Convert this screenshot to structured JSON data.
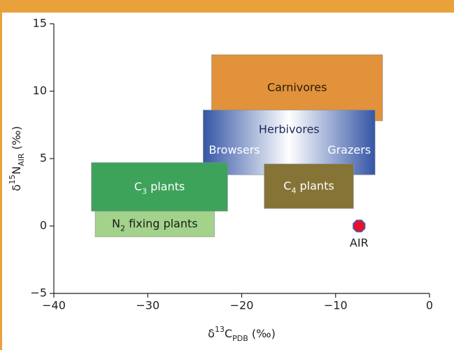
{
  "chart_data": {
    "type": "range-box",
    "x_label": [
      {
        "text": "δ"
      },
      {
        "text": "13",
        "sup": true
      },
      {
        "text": "C"
      },
      {
        "text": "PDB",
        "sub": true
      },
      {
        "text": " (‰)"
      }
    ],
    "y_label": [
      {
        "text": "δ"
      },
      {
        "text": "15",
        "sup": true
      },
      {
        "text": "N"
      },
      {
        "text": "AIR",
        "sub": true
      },
      {
        "text": " (‰)"
      }
    ],
    "xlim": [
      -40,
      0
    ],
    "ylim": [
      -5,
      15
    ],
    "xticks": [
      {
        "value": -40,
        "label": "−40"
      },
      {
        "value": -30,
        "label": "−30"
      },
      {
        "value": -20,
        "label": "−20"
      },
      {
        "value": -10,
        "label": "−10"
      },
      0
    ],
    "yticks": [
      {
        "value": -5,
        "label": "−5"
      },
      0,
      5,
      10,
      15
    ],
    "grid": false,
    "boxes": [
      {
        "label": [
          {
            "text": "Carnivores"
          }
        ],
        "x": [
          -23.2,
          -5
        ],
        "y": [
          7.8,
          12.7
        ],
        "color": "#e1923a",
        "text_color": "#2a1a08"
      },
      {
        "label": [
          {
            "text": "Herbivores"
          }
        ],
        "x": [
          -24.1,
          -5.8
        ],
        "y": [
          3.8,
          8.6
        ],
        "color": [
          "#3556a6",
          "#ffffff",
          "#3556a6"
        ],
        "text_color": "#1c2a5c",
        "sublabels": [
          {
            "text": "Browsers",
            "side": "left"
          },
          {
            "text": "Grazers",
            "side": "right"
          }
        ]
      },
      {
        "label": [
          {
            "text": "C"
          },
          {
            "text": "3",
            "sub": true
          },
          {
            "text": " plants"
          }
        ],
        "x": [
          -36,
          -21.5
        ],
        "y": [
          1.1,
          4.7
        ],
        "color": "#3da35a",
        "text_color": "#ffffff"
      },
      {
        "label": [
          {
            "text": "N"
          },
          {
            "text": "2",
            "sub": true
          },
          {
            "text": " fixing plants"
          }
        ],
        "x": [
          -35.6,
          -22.9
        ],
        "y": [
          -0.8,
          1.1
        ],
        "color": "#a3d28b",
        "text_color": "#1a1a1a"
      },
      {
        "label": [
          {
            "text": "C"
          },
          {
            "text": "4",
            "sub": true
          },
          {
            "text": " plants"
          }
        ],
        "x": [
          -17.6,
          -8.1
        ],
        "y": [
          1.3,
          4.6
        ],
        "color": "#857436",
        "text_color": "#ffffff"
      }
    ],
    "points": [
      {
        "label": "AIR",
        "x": -7.5,
        "y": 0,
        "color": "#e8112b",
        "edge": "#3a5cb0"
      }
    ]
  }
}
